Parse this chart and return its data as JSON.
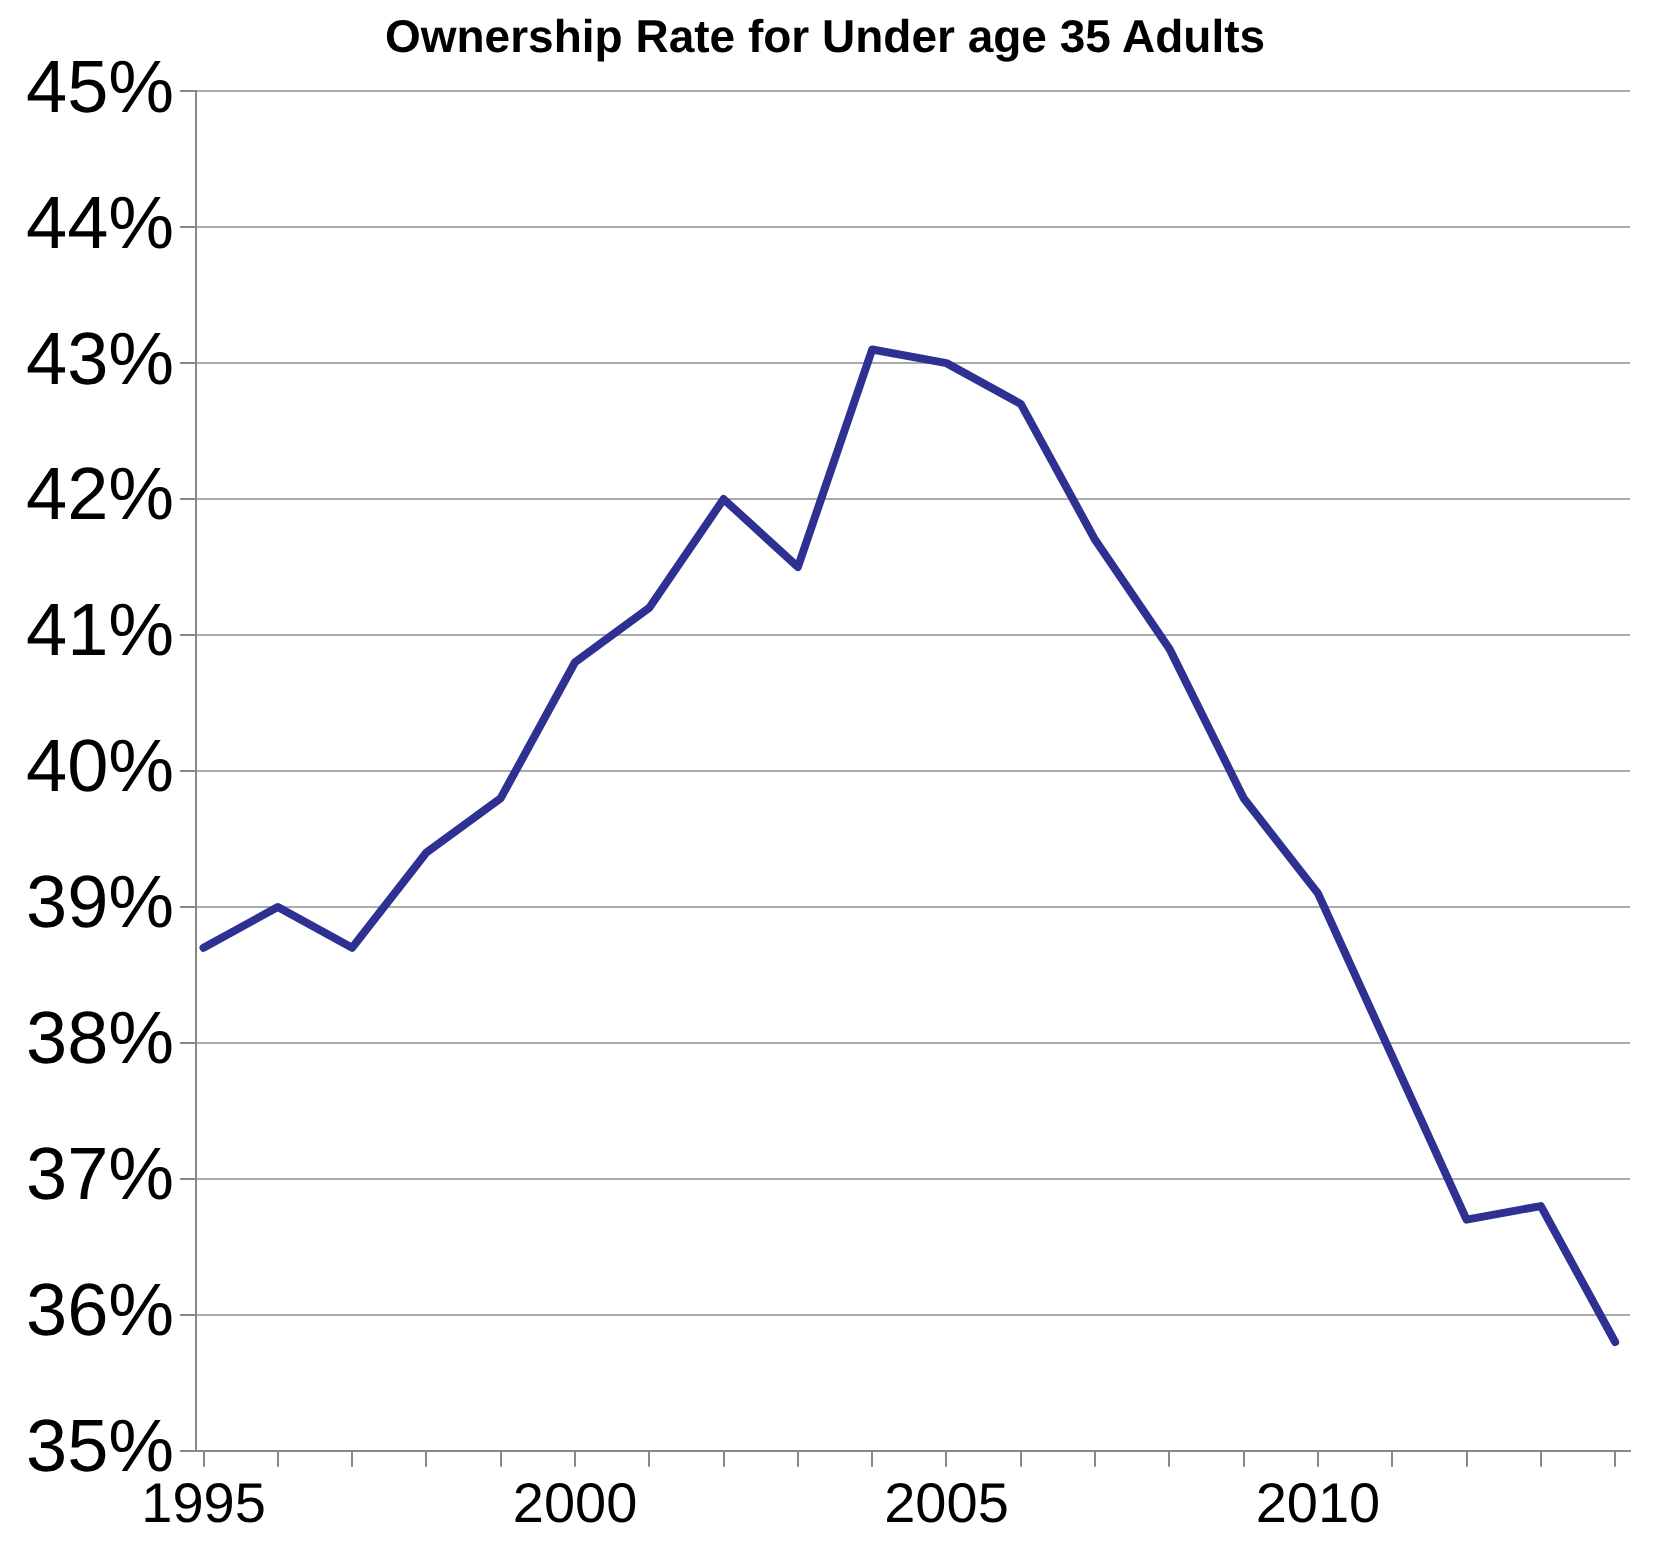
{
  "chart_data": {
    "type": "line",
    "title": "Ownership Rate for Under age 35 Adults",
    "x": [
      1995,
      1996,
      1997,
      1998,
      1999,
      2000,
      2001,
      2002,
      2003,
      2004,
      2005,
      2006,
      2007,
      2008,
      2009,
      2010,
      2011,
      2012,
      2013,
      2014
    ],
    "series": [
      {
        "color": "#2e3192",
        "values": [
          38.7,
          39.0,
          38.7,
          39.4,
          39.8,
          40.8,
          41.2,
          42.0,
          41.5,
          43.1,
          43.0,
          42.7,
          41.7,
          40.9,
          39.8,
          39.1,
          37.9,
          36.7,
          36.8,
          35.8
        ]
      }
    ],
    "xlim": [
      1994.9,
      2014.2
    ],
    "xticks": [
      1995,
      {
        "value": 1996,
        "label": null
      },
      {
        "value": 1997,
        "label": null
      },
      {
        "value": 1998,
        "label": null
      },
      {
        "value": 1999,
        "label": null
      },
      2000,
      {
        "value": 2001,
        "label": null
      },
      {
        "value": 2002,
        "label": null
      },
      {
        "value": 2003,
        "label": null
      },
      {
        "value": 2004,
        "label": null
      },
      2005,
      {
        "value": 2006,
        "label": null
      },
      {
        "value": 2007,
        "label": null
      },
      {
        "value": 2008,
        "label": null
      },
      {
        "value": 2009,
        "label": null
      },
      2010,
      {
        "value": 2011,
        "label": null
      },
      {
        "value": 2012,
        "label": null
      },
      {
        "value": 2013,
        "label": null
      },
      {
        "value": 2014,
        "label": null
      }
    ],
    "ylim": [
      35,
      45
    ],
    "yticks": [
      {
        "value": 35,
        "label": "35%"
      },
      {
        "value": 36,
        "label": "36%"
      },
      {
        "value": 37,
        "label": "37%"
      },
      {
        "value": 38,
        "label": "38%"
      },
      {
        "value": 39,
        "label": "39%"
      },
      {
        "value": 40,
        "label": "40%"
      },
      {
        "value": 41,
        "label": "41%"
      },
      {
        "value": 42,
        "label": "42%"
      },
      {
        "value": 43,
        "label": "43%"
      },
      {
        "value": 44,
        "label": "44%"
      },
      {
        "value": 45,
        "label": "45%"
      }
    ],
    "grid": "y",
    "marker": "none",
    "line_style": "solid"
  }
}
